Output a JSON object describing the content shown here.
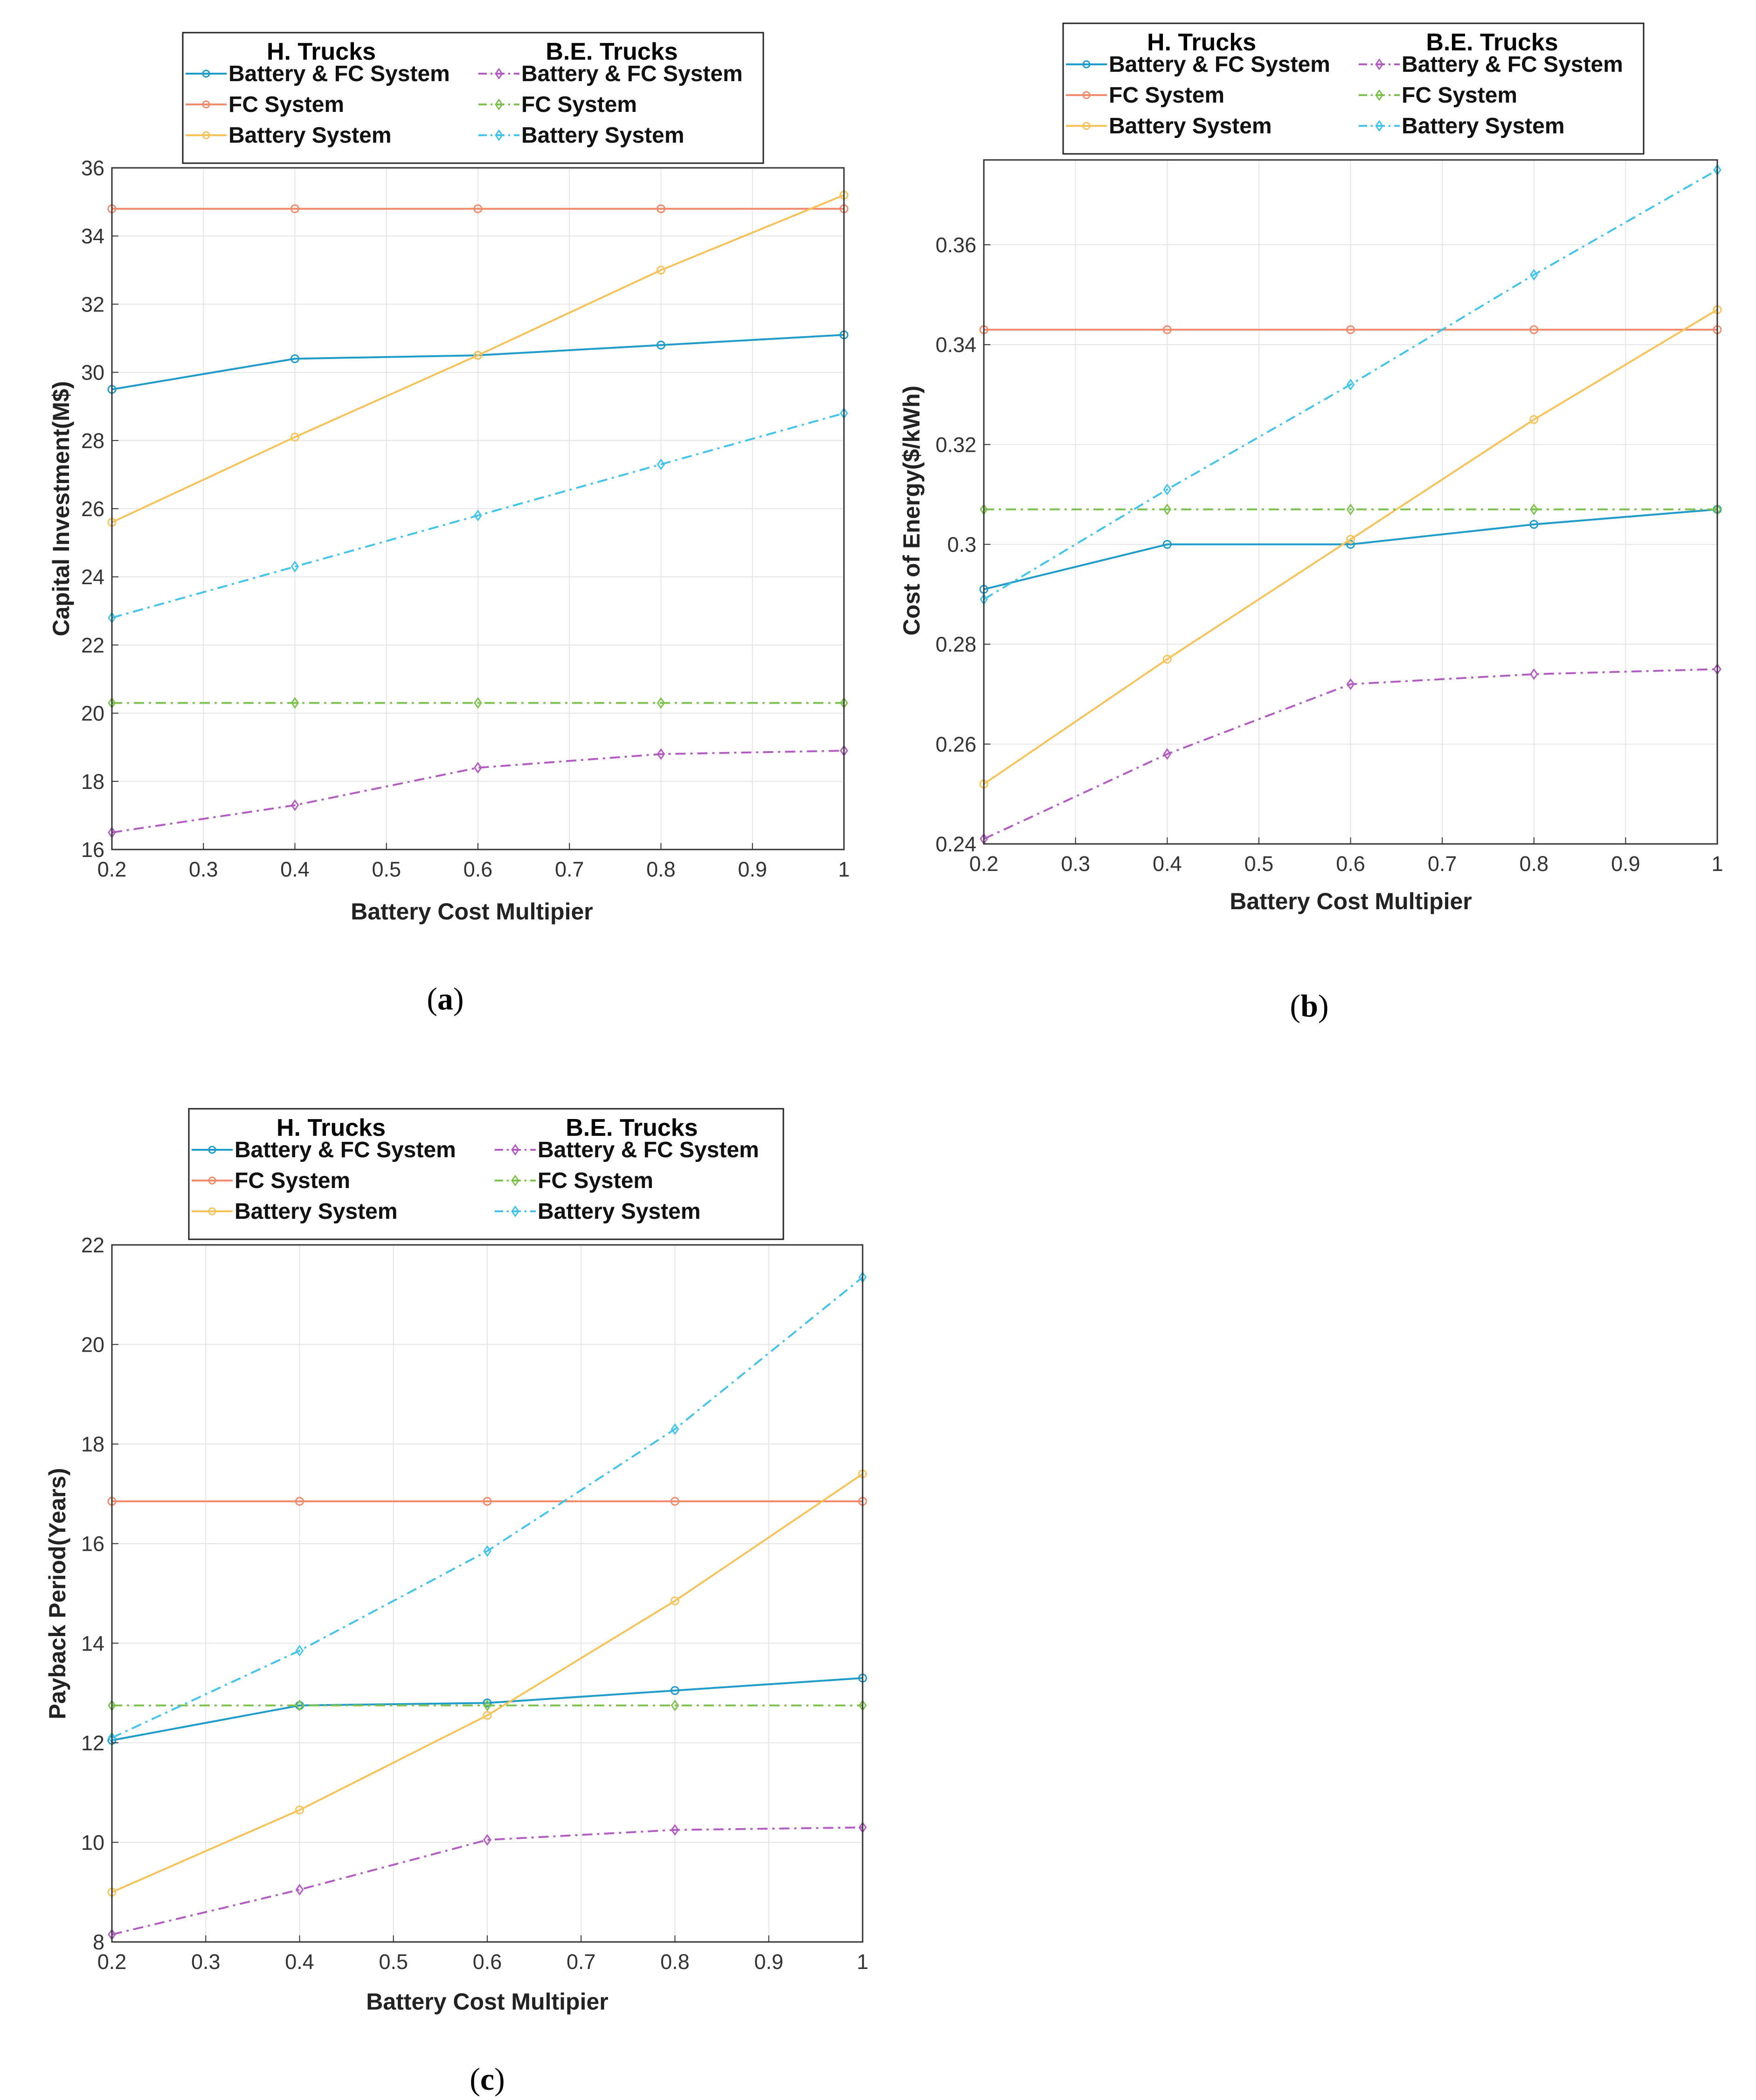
{
  "colors": {
    "h_batt_fc": "#1f9bc9",
    "h_fc": "#f08a6a",
    "h_batt": "#f6c25a",
    "be_batt_fc": "#b25cc2",
    "be_fc": "#7dc24e",
    "be_batt": "#42c3ea",
    "grid": "#e4e4e4",
    "axis": "#333333"
  },
  "legend": {
    "group_h": "H. Trucks",
    "group_be": "B.E. Trucks",
    "items": [
      "Battery & FC System",
      "FC System",
      "Battery System"
    ]
  },
  "captions": {
    "a": {
      "open": "(",
      "letter": "a",
      "close": ")"
    },
    "b": {
      "open": "(",
      "letter": "b",
      "close": ")"
    },
    "c": {
      "open": "(",
      "letter": "c",
      "close": ")"
    }
  },
  "chart_data": [
    {
      "id": "a",
      "type": "line",
      "xlabel": "Battery Cost Multipier",
      "ylabel": "Capital Investment(M$)",
      "x": [
        0.2,
        0.4,
        0.6,
        0.8,
        1.0
      ],
      "xlim": [
        0.2,
        1.0
      ],
      "ylim": [
        16,
        36
      ],
      "xticks": [
        "0.2",
        "0.3",
        "0.4",
        "0.5",
        "0.6",
        "0.7",
        "0.8",
        "0.9",
        "1"
      ],
      "yticks": [
        "16",
        "18",
        "20",
        "22",
        "24",
        "26",
        "28",
        "30",
        "32",
        "34",
        "36"
      ],
      "grid": true,
      "legend_position": "top",
      "series": [
        {
          "key": "h_batt_fc",
          "group": "H. Trucks",
          "name": "Battery & FC System",
          "values": [
            29.5,
            30.4,
            30.5,
            30.8,
            31.1
          ]
        },
        {
          "key": "h_fc",
          "group": "H. Trucks",
          "name": "FC System",
          "values": [
            34.8,
            34.8,
            34.8,
            34.8,
            34.8
          ]
        },
        {
          "key": "h_batt",
          "group": "H. Trucks",
          "name": "Battery System",
          "values": [
            25.6,
            28.1,
            30.5,
            33.0,
            35.2
          ]
        },
        {
          "key": "be_batt_fc",
          "group": "B.E. Trucks",
          "name": "Battery & FC System",
          "values": [
            16.5,
            17.3,
            18.4,
            18.8,
            18.9
          ]
        },
        {
          "key": "be_fc",
          "group": "B.E. Trucks",
          "name": "FC System",
          "values": [
            20.3,
            20.3,
            20.3,
            20.3,
            20.3
          ]
        },
        {
          "key": "be_batt",
          "group": "B.E. Trucks",
          "name": "Battery System",
          "values": [
            22.8,
            24.3,
            25.8,
            27.3,
            28.8
          ]
        }
      ]
    },
    {
      "id": "b",
      "type": "line",
      "xlabel": "Battery Cost Multipier",
      "ylabel": "Cost of Energy($/kWh)",
      "x": [
        0.2,
        0.4,
        0.6,
        0.8,
        1.0
      ],
      "xlim": [
        0.2,
        1.0
      ],
      "ylim": [
        0.24,
        0.377
      ],
      "xticks": [
        "0.2",
        "0.3",
        "0.4",
        "0.5",
        "0.6",
        "0.7",
        "0.8",
        "0.9",
        "1"
      ],
      "yticks": [
        "0.24",
        "0.26",
        "0.28",
        "0.3",
        "0.32",
        "0.34",
        "0.36"
      ],
      "grid": true,
      "legend_position": "top",
      "series": [
        {
          "key": "h_batt_fc",
          "group": "H. Trucks",
          "name": "Battery & FC System",
          "values": [
            0.291,
            0.3,
            0.3,
            0.304,
            0.307
          ]
        },
        {
          "key": "h_fc",
          "group": "H. Trucks",
          "name": "FC System",
          "values": [
            0.343,
            0.343,
            0.343,
            0.343,
            0.343
          ]
        },
        {
          "key": "h_batt",
          "group": "H. Trucks",
          "name": "Battery System",
          "values": [
            0.252,
            0.277,
            0.301,
            0.325,
            0.347
          ]
        },
        {
          "key": "be_batt_fc",
          "group": "B.E. Trucks",
          "name": "Battery & FC System",
          "values": [
            0.241,
            0.258,
            0.272,
            0.274,
            0.275
          ]
        },
        {
          "key": "be_fc",
          "group": "B.E. Trucks",
          "name": "FC System",
          "values": [
            0.307,
            0.307,
            0.307,
            0.307,
            0.307
          ]
        },
        {
          "key": "be_batt",
          "group": "B.E. Trucks",
          "name": "Battery System",
          "values": [
            0.289,
            0.311,
            0.332,
            0.354,
            0.375
          ]
        }
      ]
    },
    {
      "id": "c",
      "type": "line",
      "xlabel": "Battery Cost Multipier",
      "ylabel": "Payback Period(Years)",
      "x": [
        0.2,
        0.4,
        0.6,
        0.8,
        1.0
      ],
      "xlim": [
        0.2,
        1.0
      ],
      "ylim": [
        8,
        22
      ],
      "xticks": [
        "0.2",
        "0.3",
        "0.4",
        "0.5",
        "0.6",
        "0.7",
        "0.8",
        "0.9",
        "1"
      ],
      "yticks": [
        "8",
        "10",
        "12",
        "14",
        "16",
        "18",
        "20",
        "22"
      ],
      "grid": true,
      "legend_position": "top",
      "series": [
        {
          "key": "h_batt_fc",
          "group": "H. Trucks",
          "name": "Battery & FC System",
          "values": [
            12.05,
            12.75,
            12.8,
            13.05,
            13.3
          ]
        },
        {
          "key": "h_fc",
          "group": "H. Trucks",
          "name": "FC System",
          "values": [
            16.85,
            16.85,
            16.85,
            16.85,
            16.85
          ]
        },
        {
          "key": "h_batt",
          "group": "H. Trucks",
          "name": "Battery System",
          "values": [
            9.0,
            10.65,
            12.55,
            14.85,
            17.4
          ]
        },
        {
          "key": "be_batt_fc",
          "group": "B.E. Trucks",
          "name": "Battery & FC System",
          "values": [
            8.15,
            9.05,
            10.05,
            10.25,
            10.3
          ]
        },
        {
          "key": "be_fc",
          "group": "B.E. Trucks",
          "name": "FC System",
          "values": [
            12.75,
            12.75,
            12.75,
            12.75,
            12.75
          ]
        },
        {
          "key": "be_batt",
          "group": "B.E. Trucks",
          "name": "Battery System",
          "values": [
            12.1,
            13.85,
            15.85,
            18.3,
            21.35
          ]
        }
      ]
    }
  ]
}
